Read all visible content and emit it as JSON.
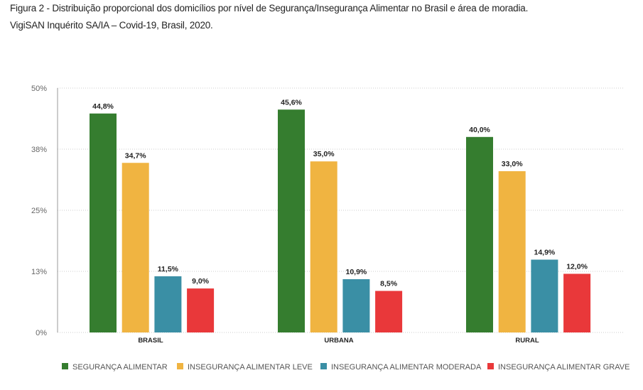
{
  "title_line1": "Figura 2 - Distribuição proporcional dos domicílios por nível de Segurança/Insegurança Alimentar no Brasil e área de moradia.",
  "title_line2": "VigiSAN Inquérito SA/IA – Covid-19, Brasil, 2020.",
  "chart_data": {
    "type": "bar",
    "title": "Distribuição proporcional dos domicílios por nível de Segurança/Insegurança Alimentar no Brasil e área de moradia",
    "categories": [
      "BRASIL",
      "URBANA",
      "RURAL"
    ],
    "series": [
      {
        "name": "SEGURANÇA ALIMENTAR",
        "color": "#357d2f",
        "values": [
          44.8,
          45.6,
          40.0
        ],
        "labels": [
          "44,8%",
          "45,6%",
          "40,0%"
        ]
      },
      {
        "name": "INSEGURANÇA ALIMENTAR LEVE",
        "color": "#f0b441",
        "values": [
          34.7,
          35.0,
          33.0
        ],
        "labels": [
          "34,7%",
          "35,0%",
          "33,0%"
        ]
      },
      {
        "name": "INSEGURANÇA ALIMENTAR MODERADA",
        "color": "#3a8fa5",
        "values": [
          11.5,
          10.9,
          14.9
        ],
        "labels": [
          "11,5%",
          "10,9%",
          "14,9%"
        ]
      },
      {
        "name": "INSEGURANÇA ALIMENTAR GRAVE",
        "color": "#e9383a",
        "values": [
          9.0,
          8.5,
          12.0
        ],
        "labels": [
          "9,0%",
          "8,5%",
          "12,0%"
        ]
      }
    ],
    "ylim": [
      0,
      50
    ],
    "yticks": [
      0,
      12.5,
      25,
      37.5,
      50
    ],
    "ytick_labels": [
      "0%",
      "13%",
      "25%",
      "38%",
      "50%"
    ],
    "grid": true,
    "legend": "bottom",
    "xlabel": "",
    "ylabel": ""
  }
}
